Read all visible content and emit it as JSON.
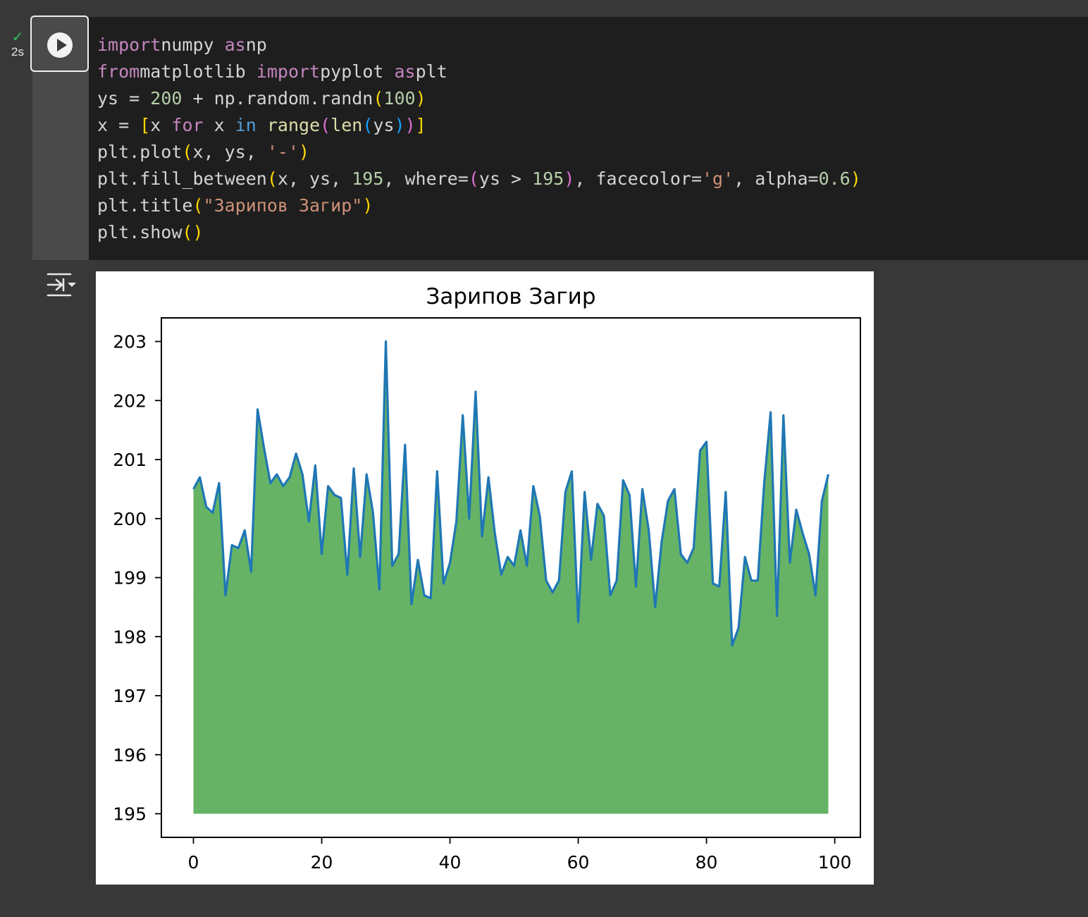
{
  "cell": {
    "status_check": "✓",
    "exec_time": "2s",
    "run_icon": "play-circle-icon",
    "output_toggle_icon": "output-collapse-icon"
  },
  "code_lines": [
    [
      [
        "kw",
        "import"
      ],
      [
        "",
        "numpy "
      ],
      [
        "kw",
        "as"
      ],
      [
        "",
        "np"
      ]
    ],
    [
      [
        "kw",
        "from"
      ],
      [
        "",
        "matplotlib "
      ],
      [
        "kw",
        "import"
      ],
      [
        "",
        "pyplot "
      ],
      [
        "kw",
        "as"
      ],
      [
        "",
        "plt"
      ]
    ],
    [
      [
        "",
        "ys = "
      ],
      [
        "num",
        "200"
      ],
      [
        "",
        " + np.random.randn"
      ],
      [
        "p1",
        "("
      ],
      [
        "num",
        "100"
      ],
      [
        "p1",
        ")"
      ]
    ],
    [
      [
        "",
        "x = "
      ],
      [
        "p1",
        "["
      ],
      [
        "",
        "x "
      ],
      [
        "kw",
        "for"
      ],
      [
        "",
        " x "
      ],
      [
        "kb",
        "in"
      ],
      [
        "",
        " "
      ],
      [
        "fn",
        "range"
      ],
      [
        "p2",
        "("
      ],
      [
        "fn",
        "len"
      ],
      [
        "p3",
        "("
      ],
      [
        "",
        "ys"
      ],
      [
        "p3",
        ")"
      ],
      [
        "p2",
        ")"
      ],
      [
        "p1",
        "]"
      ]
    ],
    [
      [
        "",
        "plt.plot"
      ],
      [
        "p1",
        "("
      ],
      [
        "",
        "x, ys, "
      ],
      [
        "str",
        "'-'"
      ],
      [
        "p1",
        ")"
      ]
    ],
    [
      [
        "",
        "plt.fill_between"
      ],
      [
        "p1",
        "("
      ],
      [
        "",
        "x, ys, "
      ],
      [
        "num",
        "195"
      ],
      [
        "",
        ", where="
      ],
      [
        "p2",
        "("
      ],
      [
        "",
        "ys > "
      ],
      [
        "num",
        "195"
      ],
      [
        "p2",
        ")"
      ],
      [
        "",
        ", facecolor="
      ],
      [
        "str",
        "'g'"
      ],
      [
        "",
        ", alpha="
      ],
      [
        "num",
        "0.6"
      ],
      [
        "p1",
        ")"
      ]
    ],
    [
      [
        "",
        "plt.title"
      ],
      [
        "p1",
        "("
      ],
      [
        "str",
        "\"Зарипов Загир\""
      ],
      [
        "p1",
        ")"
      ]
    ],
    [
      [
        "",
        "plt.show"
      ],
      [
        "p1",
        "()"
      ]
    ]
  ],
  "chart_data": {
    "type": "area",
    "title": "Зарипов Загир",
    "xlabel": "",
    "ylabel": "",
    "xlim": [
      -5,
      104
    ],
    "ylim": [
      194.6,
      203.4
    ],
    "xticks": [
      0,
      20,
      40,
      60,
      80,
      100
    ],
    "yticks": [
      195,
      196,
      197,
      198,
      199,
      200,
      201,
      202,
      203
    ],
    "fill_baseline": 195,
    "line_color": "#1f77b4",
    "fill_color": "#008000",
    "fill_alpha": 0.6,
    "grid": false,
    "x": [
      0,
      1,
      2,
      3,
      4,
      5,
      6,
      7,
      8,
      9,
      10,
      11,
      12,
      13,
      14,
      15,
      16,
      17,
      18,
      19,
      20,
      21,
      22,
      23,
      24,
      25,
      26,
      27,
      28,
      29,
      30,
      31,
      32,
      33,
      34,
      35,
      36,
      37,
      38,
      39,
      40,
      41,
      42,
      43,
      44,
      45,
      46,
      47,
      48,
      49,
      50,
      51,
      52,
      53,
      54,
      55,
      56,
      57,
      58,
      59,
      60,
      61,
      62,
      63,
      64,
      65,
      66,
      67,
      68,
      69,
      70,
      71,
      72,
      73,
      74,
      75,
      76,
      77,
      78,
      79,
      80,
      81,
      82,
      83,
      84,
      85,
      86,
      87,
      88,
      89,
      90,
      91,
      92,
      93,
      94,
      95,
      96,
      97,
      98,
      99
    ],
    "y": [
      200.5,
      200.7,
      200.2,
      200.1,
      200.6,
      198.7,
      199.55,
      199.5,
      199.8,
      199.1,
      201.85,
      201.2,
      200.6,
      200.75,
      200.55,
      200.7,
      201.1,
      200.75,
      199.95,
      200.9,
      199.4,
      200.55,
      200.4,
      200.35,
      199.05,
      200.85,
      199.35,
      200.75,
      200.1,
      198.8,
      203.0,
      199.2,
      199.4,
      201.25,
      198.55,
      199.3,
      198.7,
      198.65,
      200.8,
      198.9,
      199.25,
      199.95,
      201.75,
      200.0,
      202.15,
      199.7,
      200.7,
      199.75,
      199.05,
      199.35,
      199.2,
      199.8,
      199.2,
      200.55,
      200.05,
      198.95,
      198.75,
      198.95,
      200.45,
      200.8,
      198.25,
      200.45,
      199.3,
      200.25,
      200.05,
      198.7,
      198.95,
      200.65,
      200.4,
      198.85,
      200.5,
      199.8,
      198.5,
      199.6,
      200.3,
      200.5,
      199.4,
      199.25,
      199.5,
      201.15,
      201.3,
      198.9,
      198.85,
      200.45,
      197.85,
      198.15,
      199.35,
      198.95,
      198.95,
      200.6,
      201.8,
      198.35,
      201.75,
      199.25,
      200.15,
      199.75,
      199.4,
      198.7,
      200.3,
      200.75
    ]
  }
}
